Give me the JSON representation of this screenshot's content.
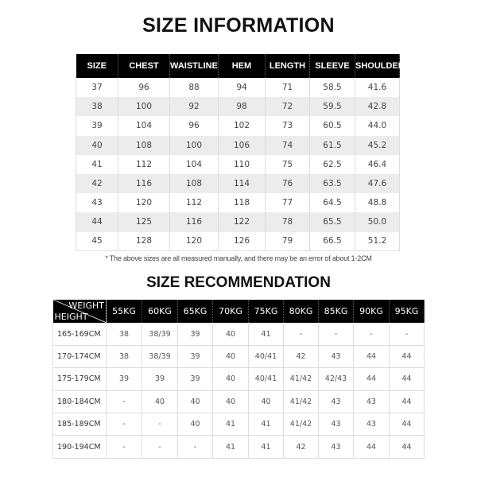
{
  "size_info": {
    "title": "SIZE INFORMATION",
    "headers": [
      "SIZE",
      "CHEST",
      "WAISTLINE",
      "HEM",
      "LENGTH",
      "SLEEVE",
      "SHOULDER"
    ],
    "rows": [
      [
        "37",
        "96",
        "88",
        "94",
        "71",
        "58.5",
        "41.6"
      ],
      [
        "38",
        "100",
        "92",
        "98",
        "72",
        "59.5",
        "42.8"
      ],
      [
        "39",
        "104",
        "96",
        "102",
        "73",
        "60.5",
        "44.0"
      ],
      [
        "40",
        "108",
        "100",
        "106",
        "74",
        "61.5",
        "45.2"
      ],
      [
        "41",
        "112",
        "104",
        "110",
        "75",
        "62.5",
        "46.4"
      ],
      [
        "42",
        "116",
        "108",
        "114",
        "76",
        "63.5",
        "47.6"
      ],
      [
        "43",
        "120",
        "112",
        "118",
        "77",
        "64.5",
        "48.8"
      ],
      [
        "44",
        "125",
        "116",
        "122",
        "78",
        "65.5",
        "50.0"
      ],
      [
        "45",
        "128",
        "120",
        "126",
        "79",
        "66.5",
        "51.2"
      ]
    ],
    "note": "* The above sizes are all measured manually, and there may be an error of about 1-2CM"
  },
  "size_rec": {
    "title": "SIZE RECOMMENDATION",
    "corner_weight": "WEIGHT",
    "corner_height": "HEIGHT",
    "weights": [
      "55KG",
      "60KG",
      "65KG",
      "70KG",
      "75KG",
      "80KG",
      "85KG",
      "90KG",
      "95KG"
    ],
    "rows": [
      {
        "height": "165-169CM",
        "values": [
          "38",
          "38/39",
          "39",
          "40",
          "41",
          "-",
          "-",
          "-",
          "-"
        ]
      },
      {
        "height": "170-174CM",
        "values": [
          "38",
          "38/39",
          "39",
          "40",
          "40/41",
          "42",
          "43",
          "44",
          "44"
        ]
      },
      {
        "height": "175-179CM",
        "values": [
          "39",
          "39",
          "39",
          "40",
          "40/41",
          "41/42",
          "42/43",
          "44",
          "44"
        ]
      },
      {
        "height": "180-184CM",
        "values": [
          "-",
          "40",
          "40",
          "40",
          "40",
          "41/42",
          "43",
          "43",
          "44"
        ]
      },
      {
        "height": "185-189CM",
        "values": [
          "-",
          "-",
          "40",
          "41",
          "41",
          "41/42",
          "43",
          "43",
          "44"
        ]
      },
      {
        "height": "190-194CM",
        "values": [
          "-",
          "-",
          "-",
          "41",
          "41",
          "42",
          "43",
          "44",
          "44"
        ]
      }
    ]
  }
}
